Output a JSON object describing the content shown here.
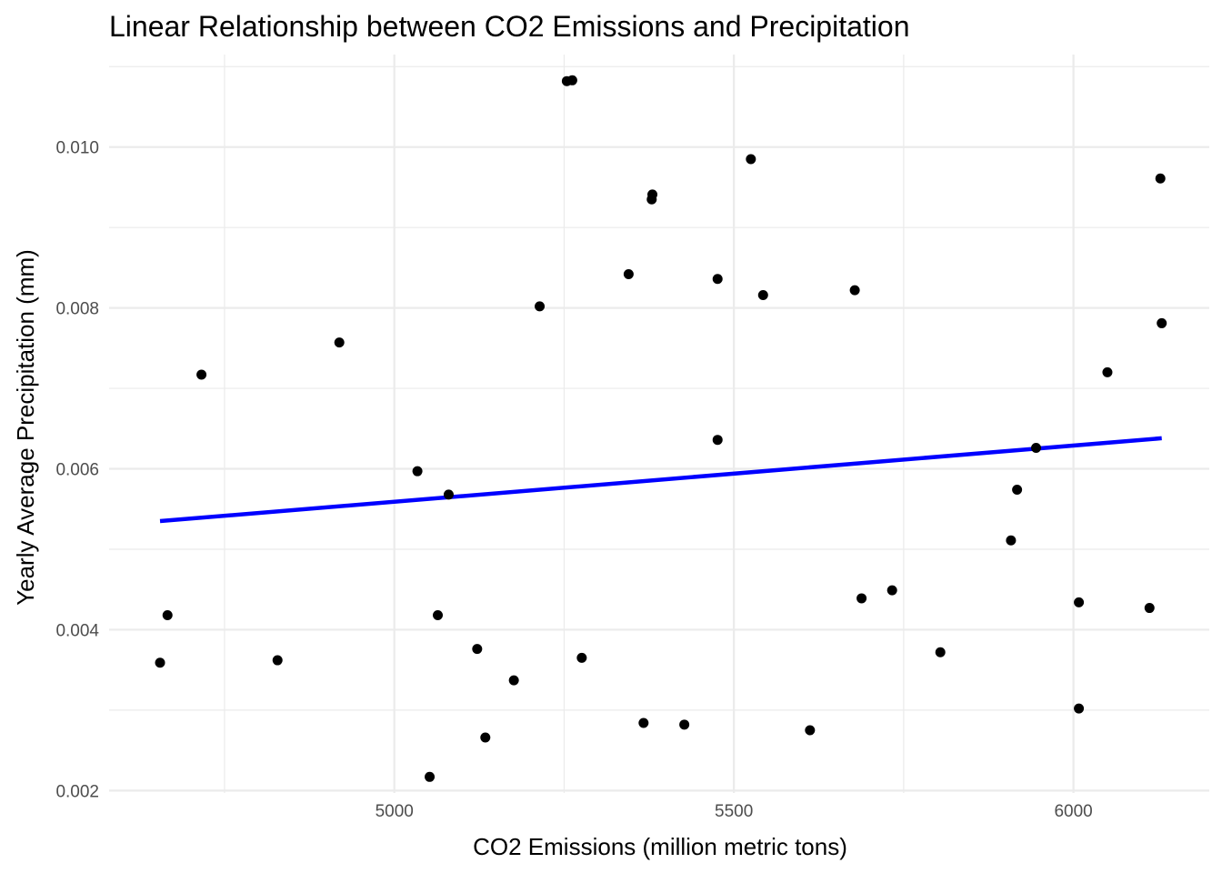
{
  "chart_data": {
    "type": "scatter",
    "title": "Linear Relationship between CO2 Emissions and Precipitation",
    "xlabel": "CO2 Emissions (million metric tons)",
    "ylabel": "Yearly Average Precipitation (mm)",
    "xlim": [
      4580,
      6200
    ],
    "ylim": [
      0.00197,
      0.01115
    ],
    "x_ticks": [
      5000,
      5500,
      6000
    ],
    "x_tick_labels": [
      "5000",
      "5500",
      "6000"
    ],
    "y_ticks": [
      0.002,
      0.004,
      0.006,
      0.008,
      0.01
    ],
    "y_tick_labels": [
      "0.002",
      "0.004",
      "0.006",
      "0.008",
      "0.010"
    ],
    "grid": true,
    "legend": "none",
    "point_color": "#000000",
    "line_color": "#0000ff",
    "points": [
      {
        "x": 4655,
        "y": 0.00359
      },
      {
        "x": 4666,
        "y": 0.00418
      },
      {
        "x": 4716,
        "y": 0.00717
      },
      {
        "x": 4828,
        "y": 0.00362
      },
      {
        "x": 4919,
        "y": 0.00757
      },
      {
        "x": 5034,
        "y": 0.00597
      },
      {
        "x": 5052,
        "y": 0.00217
      },
      {
        "x": 5064,
        "y": 0.00418
      },
      {
        "x": 5080,
        "y": 0.00568
      },
      {
        "x": 5122,
        "y": 0.00376
      },
      {
        "x": 5134,
        "y": 0.00266
      },
      {
        "x": 5176,
        "y": 0.00337
      },
      {
        "x": 5214,
        "y": 0.00802
      },
      {
        "x": 5254,
        "y": 0.01082
      },
      {
        "x": 5262,
        "y": 0.01083
      },
      {
        "x": 5276,
        "y": 0.00365
      },
      {
        "x": 5345,
        "y": 0.00842
      },
      {
        "x": 5367,
        "y": 0.00284
      },
      {
        "x": 5379,
        "y": 0.00935
      },
      {
        "x": 5380,
        "y": 0.00941
      },
      {
        "x": 5427,
        "y": 0.00282
      },
      {
        "x": 5476,
        "y": 0.00836
      },
      {
        "x": 5476,
        "y": 0.00636
      },
      {
        "x": 5525,
        "y": 0.00985
      },
      {
        "x": 5543,
        "y": 0.00816
      },
      {
        "x": 5612,
        "y": 0.00275
      },
      {
        "x": 5678,
        "y": 0.00822
      },
      {
        "x": 5688,
        "y": 0.00439
      },
      {
        "x": 5733,
        "y": 0.00449
      },
      {
        "x": 5804,
        "y": 0.00372
      },
      {
        "x": 5908,
        "y": 0.00511
      },
      {
        "x": 5917,
        "y": 0.00574
      },
      {
        "x": 5945,
        "y": 0.00626
      },
      {
        "x": 6008,
        "y": 0.00434
      },
      {
        "x": 6008,
        "y": 0.00302
      },
      {
        "x": 6050,
        "y": 0.0072
      },
      {
        "x": 6112,
        "y": 0.00427
      },
      {
        "x": 6128,
        "y": 0.00961
      },
      {
        "x": 6130,
        "y": 0.00781
      }
    ],
    "trend_line": {
      "x": [
        4655,
        6130
      ],
      "y": [
        0.00535,
        0.00638
      ]
    }
  }
}
